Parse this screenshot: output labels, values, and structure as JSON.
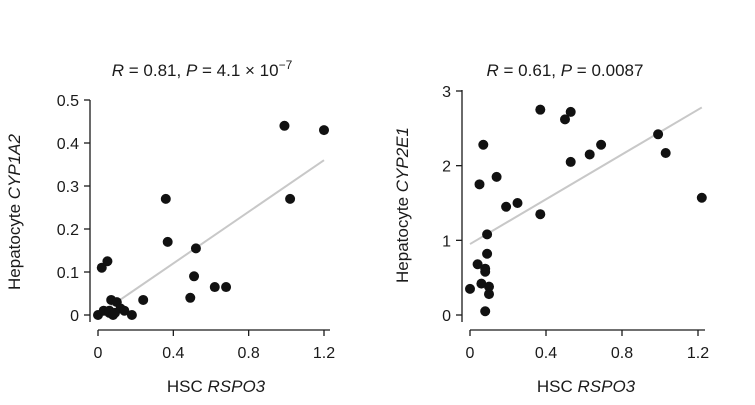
{
  "chart_data": [
    {
      "type": "scatter",
      "stat": {
        "r_label": "R",
        "r_eq": " = 0.81, ",
        "p_label": "P",
        "p_eq": " = 4.1 × 10",
        "p_exp": "−7"
      },
      "xlabel": {
        "prefix": "HSC ",
        "gene": "RSPO3"
      },
      "ylabel": {
        "prefix": "Hepatocyte ",
        "gene": "CYP1A2"
      },
      "xlim": [
        -0.03,
        1.25
      ],
      "ylim": [
        -0.01,
        0.5
      ],
      "xticks": [
        0,
        0.4,
        0.8,
        1.2
      ],
      "xtick_labels": [
        "0",
        "0.4",
        "0.8",
        "1.2"
      ],
      "yticks": [
        0,
        0.1,
        0.2,
        0.3,
        0.4,
        0.5
      ],
      "ytick_labels": [
        "0",
        "0.1",
        "0.2",
        "0.3",
        "0.4",
        "0.5"
      ],
      "fit_line": {
        "x": [
          0,
          1.2
        ],
        "y": [
          0.0,
          0.36
        ]
      },
      "x": [
        0.0,
        0.02,
        0.03,
        0.05,
        0.06,
        0.06,
        0.07,
        0.08,
        0.09,
        0.1,
        0.12,
        0.14,
        0.18,
        0.24,
        0.36,
        0.37,
        0.49,
        0.51,
        0.52,
        0.62,
        0.68,
        0.99,
        1.02,
        1.2
      ],
      "y": [
        0.0,
        0.11,
        0.01,
        0.125,
        0.005,
        0.01,
        0.035,
        0.0,
        0.005,
        0.03,
        0.015,
        0.01,
        0.0,
        0.035,
        0.27,
        0.17,
        0.04,
        0.09,
        0.155,
        0.065,
        0.065,
        0.44,
        0.27,
        0.43
      ]
    },
    {
      "type": "scatter",
      "stat": {
        "r_label": "R",
        "r_eq": " = 0.61, ",
        "p_label": "P",
        "p_eq": " = 0.0087"
      },
      "xlabel": {
        "prefix": "HSC ",
        "gene": "RSPO3"
      },
      "ylabel": {
        "prefix": "Hepatocyte ",
        "gene": "CYP2E1"
      },
      "xlim": [
        -0.03,
        1.25
      ],
      "ylim": [
        -0.05,
        3.0
      ],
      "xticks": [
        0,
        0.4,
        0.8,
        1.2
      ],
      "xtick_labels": [
        "0",
        "0.4",
        "0.8",
        "1.2"
      ],
      "yticks": [
        0,
        1,
        2,
        3
      ],
      "ytick_labels": [
        "0",
        "1",
        "2",
        "3"
      ],
      "fit_line": {
        "x": [
          0,
          1.22
        ],
        "y": [
          0.95,
          2.78
        ]
      },
      "x": [
        0.0,
        0.04,
        0.05,
        0.06,
        0.07,
        0.08,
        0.08,
        0.08,
        0.09,
        0.09,
        0.1,
        0.1,
        0.14,
        0.19,
        0.25,
        0.37,
        0.37,
        0.5,
        0.53,
        0.53,
        0.63,
        0.69,
        0.99,
        1.03,
        1.22
      ],
      "y": [
        0.35,
        0.68,
        1.75,
        0.42,
        2.28,
        0.05,
        0.58,
        0.62,
        0.82,
        1.08,
        0.28,
        0.38,
        1.85,
        1.45,
        1.5,
        1.35,
        2.75,
        2.62,
        2.72,
        2.05,
        2.15,
        2.28,
        2.42,
        2.17,
        1.57
      ]
    }
  ]
}
